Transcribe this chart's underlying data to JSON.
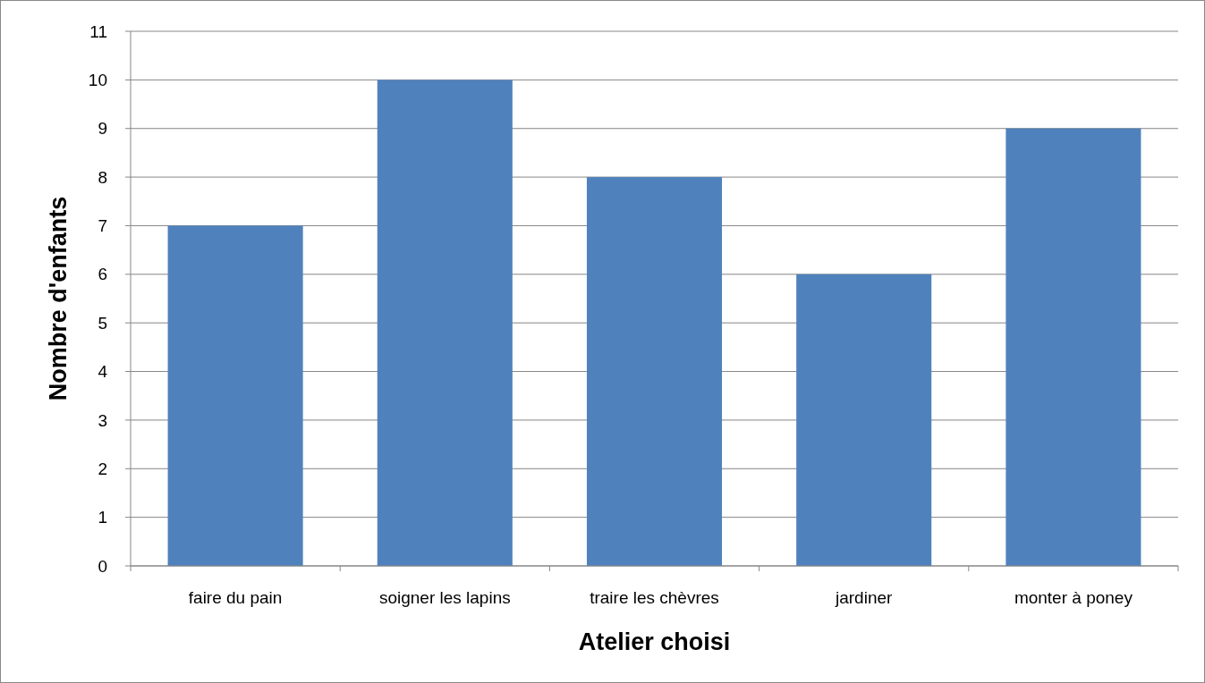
{
  "chart_data": {
    "type": "bar",
    "xlabel": "Atelier choisi",
    "ylabel": "Nombre d'enfants",
    "categories": [
      "faire du pain",
      "soigner les lapins",
      "traire les chèvres",
      "jardiner",
      "monter à poney"
    ],
    "values": [
      7,
      10,
      8,
      6,
      9
    ],
    "color": "#4f81bd",
    "ylim": [
      0,
      11
    ],
    "yticks": [
      0,
      1,
      2,
      3,
      4,
      5,
      6,
      7,
      8,
      9,
      10,
      11
    ],
    "grid": "y"
  }
}
